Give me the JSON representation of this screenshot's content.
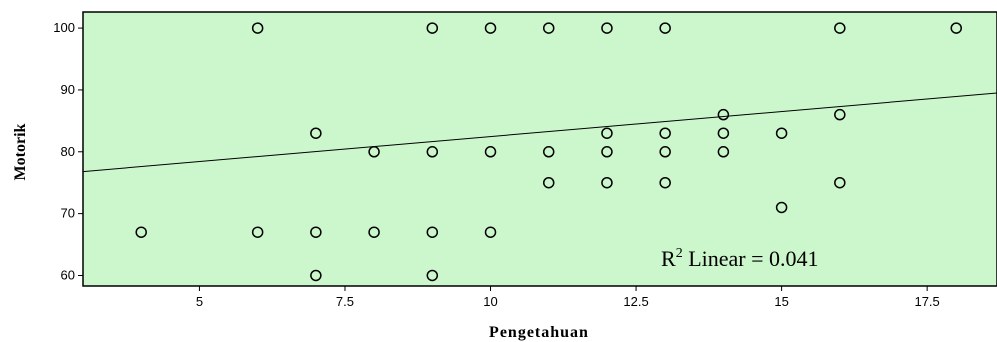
{
  "chart_data": {
    "type": "scatter",
    "title": "",
    "xlabel": "Pengetahuan",
    "ylabel": "Motorik",
    "xlim": [
      3,
      18.7
    ],
    "ylim": [
      58.3,
      102.6
    ],
    "x_ticks": [
      5,
      7.5,
      10,
      12.5,
      15,
      17.5
    ],
    "x_tick_labels": [
      "5",
      "7.5",
      "10",
      "12.5",
      "15",
      "17.5"
    ],
    "y_ticks": [
      60,
      70,
      80,
      90,
      100
    ],
    "y_tick_labels": [
      "60",
      "70",
      "80",
      "90",
      "100"
    ],
    "grid": false,
    "plot_background": "#ccf7cc",
    "marker_color": "#000000",
    "points": [
      {
        "x": 4,
        "y": 67
      },
      {
        "x": 6,
        "y": 100
      },
      {
        "x": 6,
        "y": 67
      },
      {
        "x": 7,
        "y": 83
      },
      {
        "x": 7,
        "y": 67
      },
      {
        "x": 7,
        "y": 60
      },
      {
        "x": 8,
        "y": 80
      },
      {
        "x": 8,
        "y": 67
      },
      {
        "x": 9,
        "y": 100
      },
      {
        "x": 9,
        "y": 80
      },
      {
        "x": 9,
        "y": 67
      },
      {
        "x": 9,
        "y": 60
      },
      {
        "x": 10,
        "y": 100
      },
      {
        "x": 10,
        "y": 80
      },
      {
        "x": 10,
        "y": 67
      },
      {
        "x": 11,
        "y": 100
      },
      {
        "x": 11,
        "y": 80
      },
      {
        "x": 11,
        "y": 75
      },
      {
        "x": 12,
        "y": 100
      },
      {
        "x": 12,
        "y": 83
      },
      {
        "x": 12,
        "y": 80
      },
      {
        "x": 12,
        "y": 75
      },
      {
        "x": 13,
        "y": 100
      },
      {
        "x": 13,
        "y": 83
      },
      {
        "x": 13,
        "y": 80
      },
      {
        "x": 13,
        "y": 75
      },
      {
        "x": 14,
        "y": 86
      },
      {
        "x": 14,
        "y": 83
      },
      {
        "x": 14,
        "y": 80
      },
      {
        "x": 15,
        "y": 83
      },
      {
        "x": 15,
        "y": 71
      },
      {
        "x": 16,
        "y": 100
      },
      {
        "x": 16,
        "y": 86
      },
      {
        "x": 16,
        "y": 75
      },
      {
        "x": 18,
        "y": 100
      }
    ],
    "fit_line": {
      "type": "linear",
      "x": [
        3,
        18.7
      ],
      "y": [
        76.8,
        89.5
      ]
    },
    "annotation": {
      "prefix": "R",
      "superscript": "2",
      "text": " Linear = 0.041"
    }
  }
}
